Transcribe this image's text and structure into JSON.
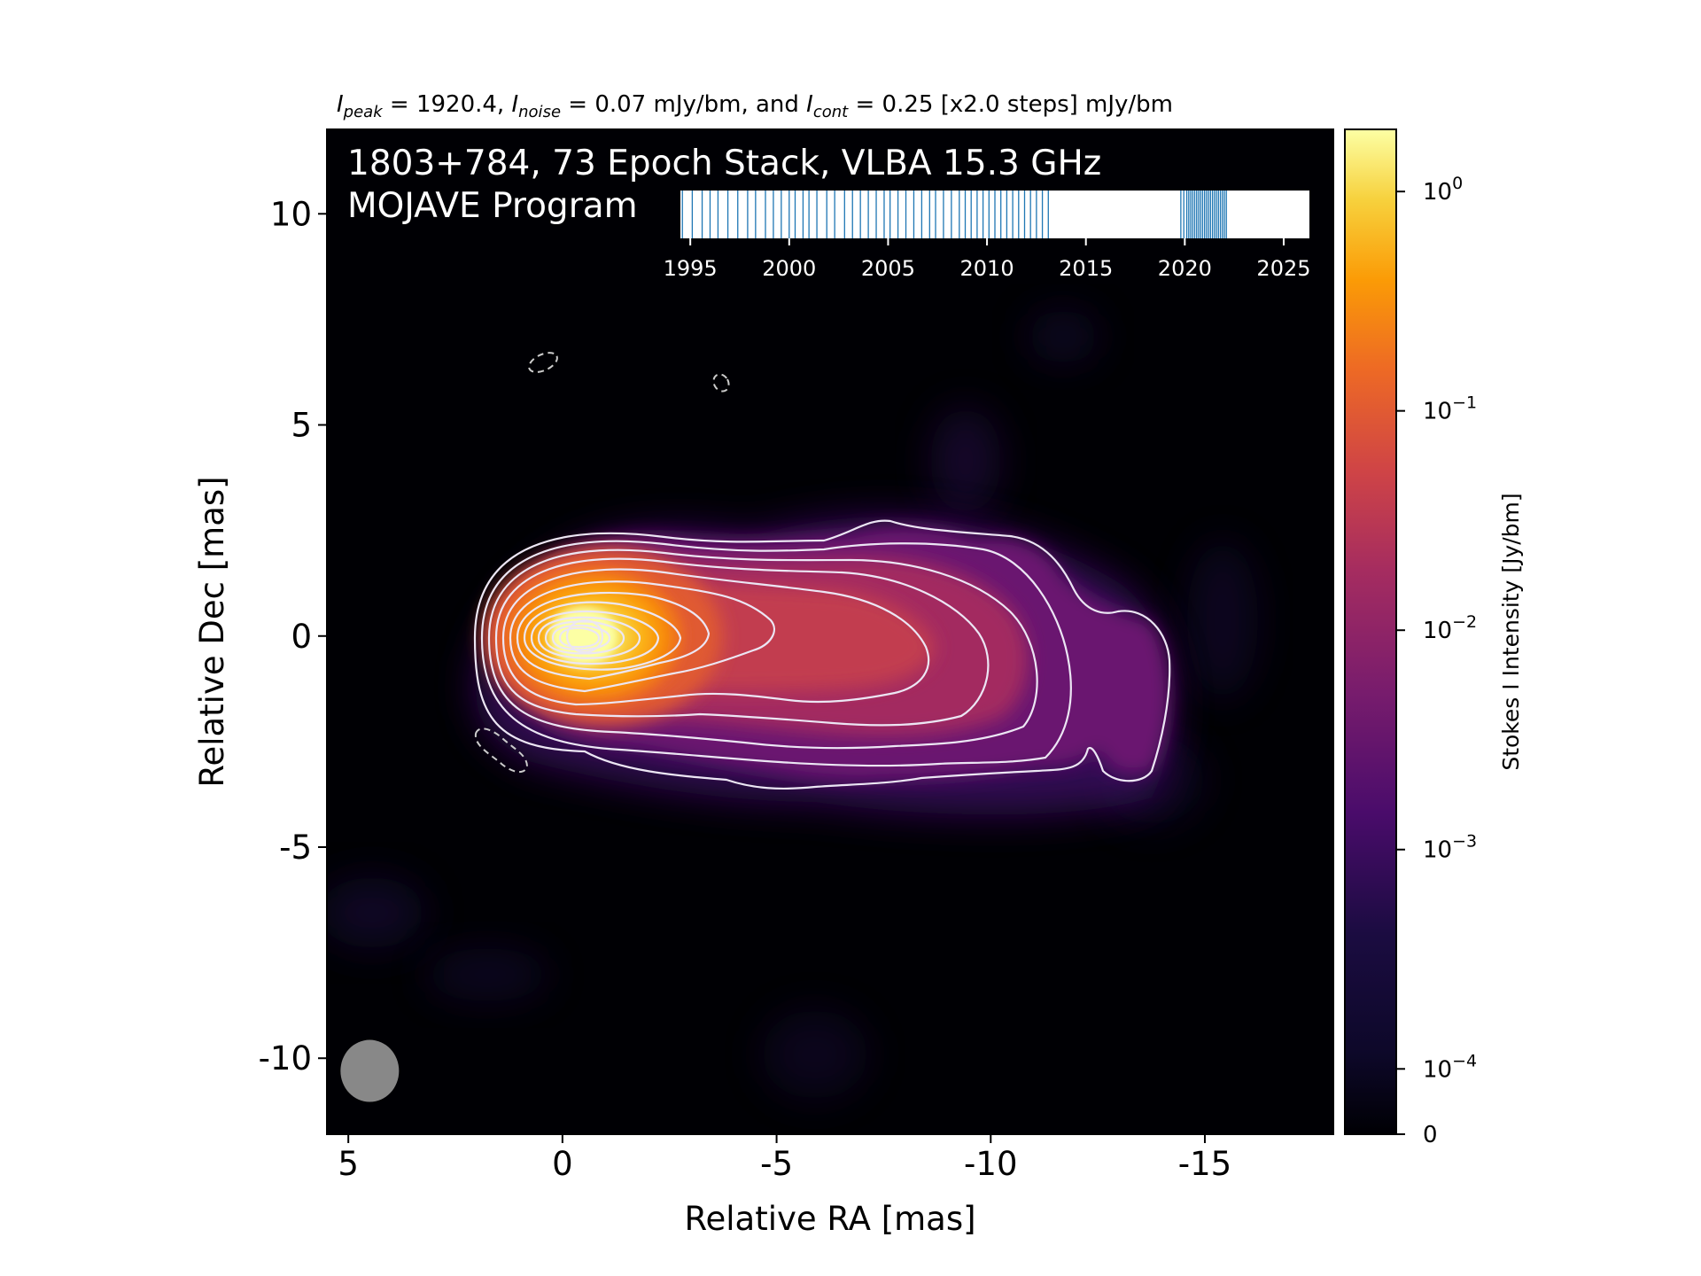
{
  "header_line": {
    "peak_label": "I",
    "peak_sub": "peak",
    "peak_text": " = 1920.4, ",
    "noise_label": "I",
    "noise_sub": "noise",
    "noise_text": " = 0.07 mJy/bm, and ",
    "cont_label": "I",
    "cont_sub": "cont",
    "cont_text": " = 0.25 [x2.0 steps] mJy/bm"
  },
  "overlay_title": {
    "line1": "1803+784, 73 Epoch Stack, VLBA 15.3 GHz",
    "line2": "MOJAVE Program"
  },
  "chart_data": {
    "type": "heatmap",
    "xlabel": "Relative RA [mas]",
    "ylabel": "Relative Dec [mas]",
    "xlim": [
      5.5,
      -18
    ],
    "ylim": [
      -11.8,
      12
    ],
    "xticks": [
      5,
      0,
      -5,
      -10,
      -15
    ],
    "xtick_labels": [
      "5",
      "0",
      "-5",
      "-10",
      "-15"
    ],
    "yticks": [
      10,
      5,
      0,
      -5,
      -10
    ],
    "ytick_labels": [
      "10",
      "5",
      "0",
      "-5",
      "-10"
    ],
    "grid": false,
    "colormap": "inferno",
    "colorbar": {
      "label": "Stokes I Intensity [Jy/bm]",
      "scale": "log",
      "ticks": [
        {
          "value": 1,
          "base": "10",
          "exp": "0"
        },
        {
          "value": 0.1,
          "base": "10",
          "exp": "−1"
        },
        {
          "value": 0.01,
          "base": "10",
          "exp": "−2"
        },
        {
          "value": 0.001,
          "base": "10",
          "exp": "−3"
        },
        {
          "value": 0.0001,
          "base": "10",
          "exp": "−4"
        },
        {
          "value": 0,
          "label": "0"
        }
      ],
      "range": [
        0,
        1.92
      ]
    },
    "contours": {
      "base_mJy": 0.25,
      "step_factor": 2.0,
      "negative_style": "dashed"
    },
    "beam": {
      "x": 4.5,
      "y": -10.3,
      "major": 1.65,
      "minor": 1.35
    },
    "epoch_timeline": {
      "xlim": [
        1994.5,
        2026.3
      ],
      "ticks": [
        1995,
        2000,
        2005,
        2010,
        2015,
        2020,
        2025
      ],
      "tick_labels": [
        "1995",
        "2000",
        "2005",
        "2010",
        "2015",
        "2020",
        "2025"
      ],
      "epochs": [
        1994.6,
        1995.1,
        1995.6,
        1996.0,
        1996.4,
        1996.9,
        1997.4,
        1997.9,
        1998.3,
        1998.8,
        1999.2,
        1999.6,
        2000.0,
        2000.3,
        2000.7,
        2001.0,
        2001.4,
        2001.9,
        2002.3,
        2002.8,
        2003.2,
        2003.6,
        2004.0,
        2004.4,
        2004.8,
        2005.1,
        2005.5,
        2005.9,
        2006.3,
        2006.7,
        2007.1,
        2007.4,
        2007.8,
        2008.2,
        2008.6,
        2008.9,
        2009.2,
        2009.5,
        2009.8,
        2010.1,
        2010.4,
        2010.7,
        2011.0,
        2011.3,
        2011.6,
        2011.9,
        2012.2,
        2012.5,
        2012.8,
        2013.1,
        2019.8,
        2019.95,
        2020.1,
        2020.2,
        2020.3,
        2020.4,
        2020.5,
        2020.6,
        2020.7,
        2020.8,
        2020.9,
        2021.0,
        2021.1,
        2021.2,
        2021.3,
        2021.4,
        2021.5,
        2021.6,
        2021.7,
        2021.8,
        2021.9,
        2022.0,
        2022.1
      ]
    }
  }
}
